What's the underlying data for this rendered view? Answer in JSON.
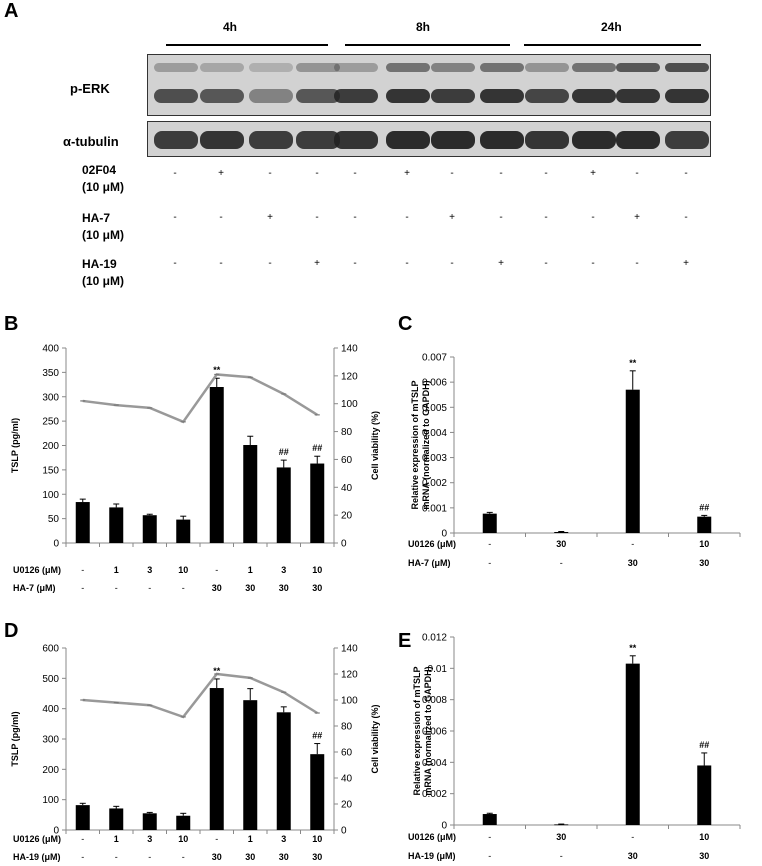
{
  "panel_a": {
    "panel_letter": "A",
    "timepoints": [
      "4h",
      "8h",
      "24h"
    ],
    "blots": [
      {
        "label": "p-ERK",
        "band_strength": [
          [
            0.3,
            0.75
          ],
          [
            0.25,
            0.7
          ],
          [
            0.2,
            0.45
          ],
          [
            0.35,
            0.7
          ],
          [
            0.3,
            0.85
          ],
          [
            0.55,
            0.9
          ],
          [
            0.45,
            0.85
          ],
          [
            0.55,
            0.9
          ],
          [
            0.35,
            0.8
          ],
          [
            0.55,
            0.9
          ],
          [
            0.7,
            0.9
          ],
          [
            0.75,
            0.9
          ]
        ]
      },
      {
        "label": "α-tubulin",
        "band_strength": [
          [
            0.85
          ],
          [
            0.9
          ],
          [
            0.85
          ],
          [
            0.85
          ],
          [
            0.9
          ],
          [
            0.95
          ],
          [
            0.95
          ],
          [
            0.95
          ],
          [
            0.9
          ],
          [
            0.95
          ],
          [
            0.95
          ],
          [
            0.85
          ]
        ]
      }
    ],
    "treatments": [
      {
        "label_line1": "02F04",
        "label_line2": "(10 μM)",
        "signs": [
          "-",
          "+",
          "-",
          "-",
          "-",
          "+",
          "-",
          "-",
          "-",
          "+",
          "-",
          "-"
        ]
      },
      {
        "label_line1": "HA-7",
        "label_line2": "(10 μM)",
        "signs": [
          "-",
          "-",
          "+",
          "-",
          "-",
          "-",
          "+",
          "-",
          "-",
          "-",
          "+",
          "-"
        ]
      },
      {
        "label_line1": "HA-19",
        "label_line2": "(10 μM)",
        "signs": [
          "-",
          "-",
          "-",
          "+",
          "-",
          "-",
          "-",
          "+",
          "-",
          "-",
          "-",
          "+"
        ]
      }
    ]
  },
  "chart_data": [
    {
      "panel": "B",
      "type": "bar",
      "series": [
        {
          "values": [
            84,
            73,
            57,
            48,
            320,
            201,
            155,
            163
          ],
          "errors": [
            6,
            7,
            2,
            7,
            18,
            18,
            15,
            15
          ]
        },
        {
          "type": "line",
          "axis": "right",
          "values": [
            102,
            99,
            97,
            87,
            121,
            119,
            107,
            92
          ],
          "color": "#999999"
        }
      ],
      "ylabel": "TSLP (pg/ml)",
      "y2label": "Cell viability (%)",
      "ylim": [
        0,
        400
      ],
      "yticks": [
        "0",
        "50",
        "100",
        "150",
        "200",
        "250",
        "300",
        "350",
        "400"
      ],
      "y2lim": [
        0,
        140
      ],
      "y2ticks": [
        "0",
        "20",
        "40",
        "60",
        "80",
        "100",
        "120",
        "140"
      ],
      "annotations": [
        "",
        "",
        "",
        "",
        "**",
        "",
        "##",
        "##"
      ],
      "rows": [
        {
          "label": "U0126 (μM)",
          "values": [
            "-",
            "1",
            "3",
            "10",
            "-",
            "1",
            "3",
            "10"
          ]
        },
        {
          "label": "HA-7 (μM)",
          "values": [
            "-",
            "-",
            "-",
            "-",
            "30",
            "30",
            "30",
            "30"
          ]
        }
      ],
      "grid": false
    },
    {
      "panel": "C",
      "type": "bar",
      "series": [
        {
          "values": [
            0.00077,
            4e-05,
            0.0057,
            0.00065
          ],
          "errors": [
            5e-05,
            2e-05,
            0.00075,
            5e-05
          ]
        }
      ],
      "ylabel": "Relative expression of mTSLP mRNA (normalized to GAPDH)",
      "ylim": [
        0,
        0.007
      ],
      "yticks": [
        "0",
        "0.001",
        "0.002",
        "0.003",
        "0.004",
        "0.005",
        "0.006",
        "0.007"
      ],
      "annotations": [
        "",
        "",
        "**",
        "##"
      ],
      "rows": [
        {
          "label": "U0126 (μM)",
          "values": [
            "-",
            "30",
            "-",
            "10"
          ]
        },
        {
          "label": "HA-7 (μM)",
          "values": [
            "-",
            "-",
            "30",
            "30"
          ]
        }
      ],
      "grid": false
    },
    {
      "panel": "D",
      "type": "bar",
      "series": [
        {
          "values": [
            82,
            71,
            55,
            47,
            468,
            428,
            388,
            250
          ],
          "errors": [
            6,
            7,
            3,
            8,
            30,
            38,
            18,
            35
          ]
        },
        {
          "type": "line",
          "axis": "right",
          "values": [
            100,
            98,
            96,
            87,
            120,
            117,
            106,
            90
          ],
          "color": "#999999"
        }
      ],
      "ylabel": "TSLP (pg/ml)",
      "y2label": "Cell viability (%)",
      "ylim": [
        0,
        600
      ],
      "yticks": [
        "0",
        "100",
        "200",
        "300",
        "400",
        "500",
        "600"
      ],
      "y2lim": [
        0,
        140
      ],
      "y2ticks": [
        "0",
        "20",
        "40",
        "60",
        "80",
        "100",
        "120",
        "140"
      ],
      "annotations": [
        "",
        "",
        "",
        "",
        "**",
        "",
        "",
        "##"
      ],
      "rows": [
        {
          "label": "U0126 (μM)",
          "values": [
            "-",
            "1",
            "3",
            "10",
            "-",
            "1",
            "3",
            "10"
          ]
        },
        {
          "label": "HA-19 (μM)",
          "values": [
            "-",
            "-",
            "-",
            "-",
            "30",
            "30",
            "30",
            "30"
          ]
        }
      ],
      "grid": false
    },
    {
      "panel": "E",
      "type": "bar",
      "series": [
        {
          "values": [
            0.0007,
            4e-05,
            0.0103,
            0.0038
          ],
          "errors": [
            5e-05,
            2e-05,
            0.0005,
            0.0008
          ]
        }
      ],
      "ylabel": "Relative expression of mTSLP mRNA (normalized to GAPDH)",
      "ylim": [
        0,
        0.012
      ],
      "yticks": [
        "0",
        "0.002",
        "0.004",
        "0.006",
        "0.008",
        "0.01",
        "0.012"
      ],
      "annotations": [
        "",
        "",
        "**",
        "##"
      ],
      "rows": [
        {
          "label": "U0126 (μM)",
          "values": [
            "-",
            "30",
            "-",
            "10"
          ]
        },
        {
          "label": "HA-19 (μM)",
          "values": [
            "-",
            "-",
            "30",
            "30"
          ]
        }
      ],
      "grid": false
    }
  ]
}
